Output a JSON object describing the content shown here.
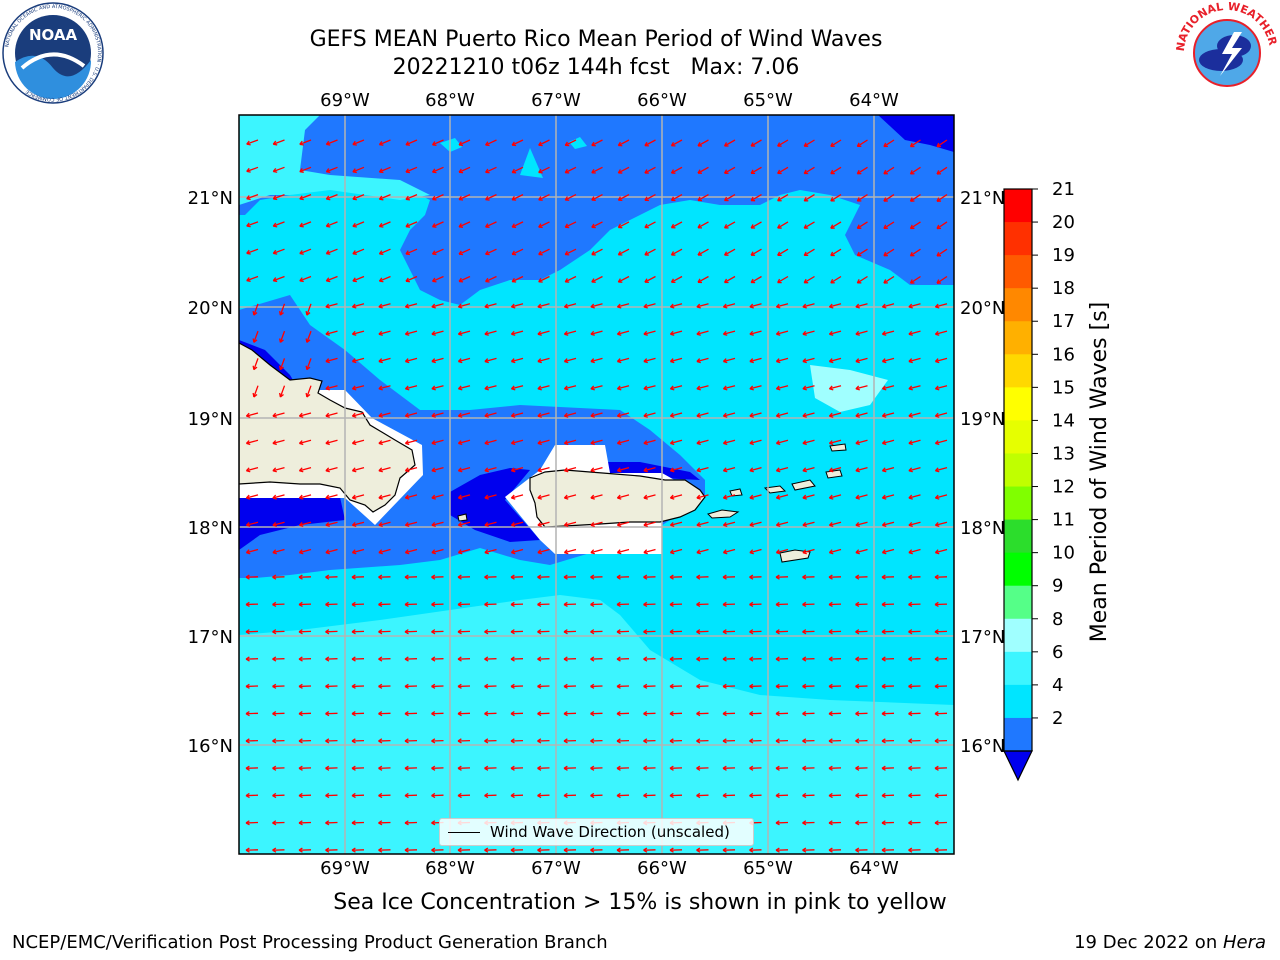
{
  "header": {
    "title_line1": "GEFS MEAN Puerto Rico Mean Period of Wind Waves",
    "title_line2": "20221210 t06z 144h fcst   Max: 7.06"
  },
  "logos": {
    "left": {
      "icon": "noaa-logo",
      "text": "NOAA",
      "ring_text": "NATIONAL OCEANIC AND ATMOSPHERIC ADMINISTRATION · U.S. DEPARTMENT OF COMMERCE"
    },
    "right": {
      "icon": "nws-logo",
      "ring_text": "NATIONAL WEATHER SERVICE"
    }
  },
  "map": {
    "lon_labels": [
      "69°W",
      "68°W",
      "67°W",
      "66°W",
      "65°W",
      "64°W"
    ],
    "lat_labels": [
      "21°N",
      "20°N",
      "19°N",
      "18°N",
      "17°N",
      "16°N"
    ],
    "legend_label": "Wind Wave Direction (unscaled)",
    "colors": {
      "land": "#eeeedc",
      "band_0_2": "#0000ee",
      "band_2_4": "#1f78ff",
      "band_4_6": "#00e5ff",
      "band_6_8": "#3cf5ff",
      "band_8_9": "#a0ffff",
      "arrow": "#ff0000"
    }
  },
  "colorbar": {
    "label": "Mean Period of Wind Waves [s]",
    "ticks": [
      "21",
      "20",
      "19",
      "18",
      "17",
      "16",
      "15",
      "14",
      "13",
      "12",
      "11",
      "10",
      "9",
      "8",
      "6",
      "4",
      "2"
    ],
    "colors": [
      "#ff0000",
      "#ff3000",
      "#ff5a00",
      "#ff8800",
      "#ffb000",
      "#ffd800",
      "#ffff00",
      "#e6ff00",
      "#c0ff00",
      "#80ff00",
      "#2cdd2c",
      "#00ff00",
      "#55ff88",
      "#a0ffff",
      "#3cf5ff",
      "#00e5ff",
      "#1f78ff",
      "#0000ee"
    ]
  },
  "notes": {
    "sea_ice": "Sea Ice Concentration > 15% is shown in pink to yellow",
    "producer": "NCEP/EMC/Verification Post Processing Product Generation Branch",
    "date": "19 Dec 2022 on ",
    "machine": "Hera"
  }
}
